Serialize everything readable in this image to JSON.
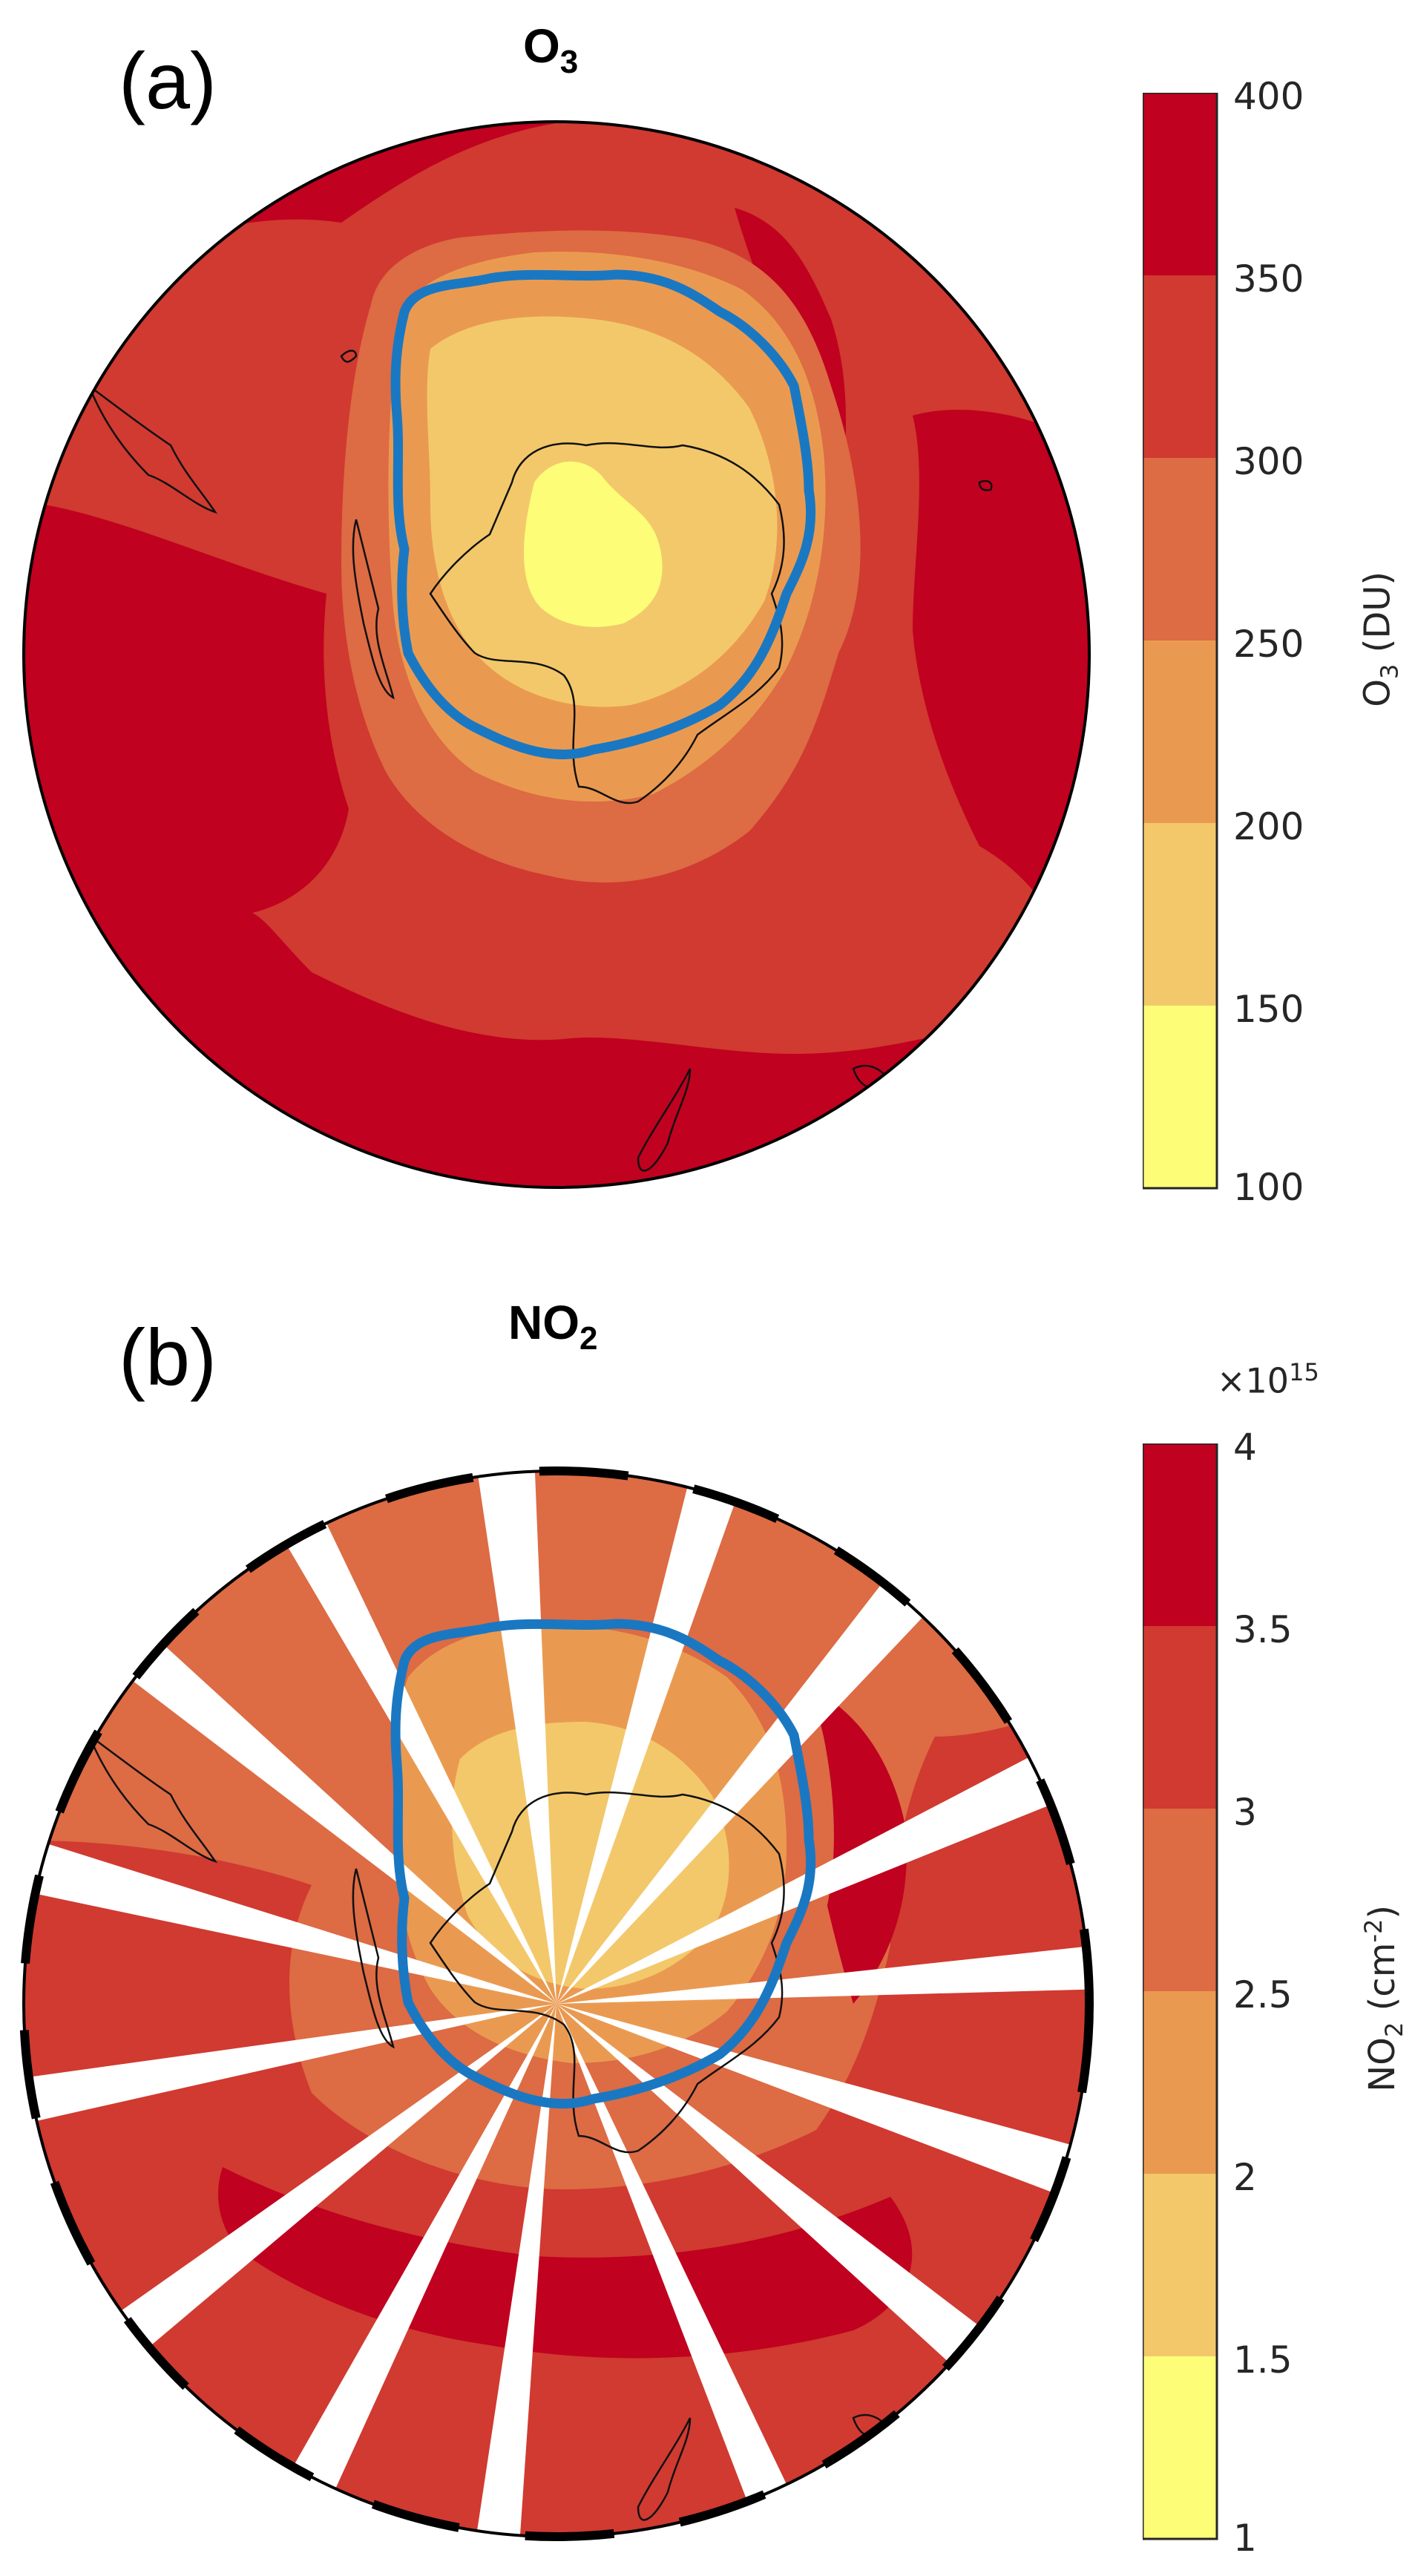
{
  "colors": {
    "levels": [
      "#fdfd78",
      "#f3c86b",
      "#ea9a50",
      "#dd6b44",
      "#d03a30",
      "#c0011f"
    ],
    "outline": "#1a78c2",
    "coast": "#111111",
    "missing": "#ffffff"
  },
  "panels": [
    {
      "id": "a",
      "label": "(a)",
      "title_main": "O",
      "title_sub": "3",
      "colorbar": {
        "ticks": [
          "400",
          "350",
          "300",
          "250",
          "200",
          "150",
          "100"
        ],
        "label_main": "O",
        "label_sub": "3",
        "label_unit": " (DU)",
        "multiplier": ""
      }
    },
    {
      "id": "b",
      "label": "(b)",
      "title_main": "NO",
      "title_sub": "2",
      "colorbar": {
        "ticks": [
          "4",
          "3.5",
          "3",
          "2.5",
          "2",
          "1.5",
          "1"
        ],
        "label_main": "NO",
        "label_sub": "2",
        "label_unit": " (cm",
        "label_sup": "-2",
        "label_close": ")",
        "multiplier_base": "×10",
        "multiplier_exp": "15"
      }
    }
  ]
}
